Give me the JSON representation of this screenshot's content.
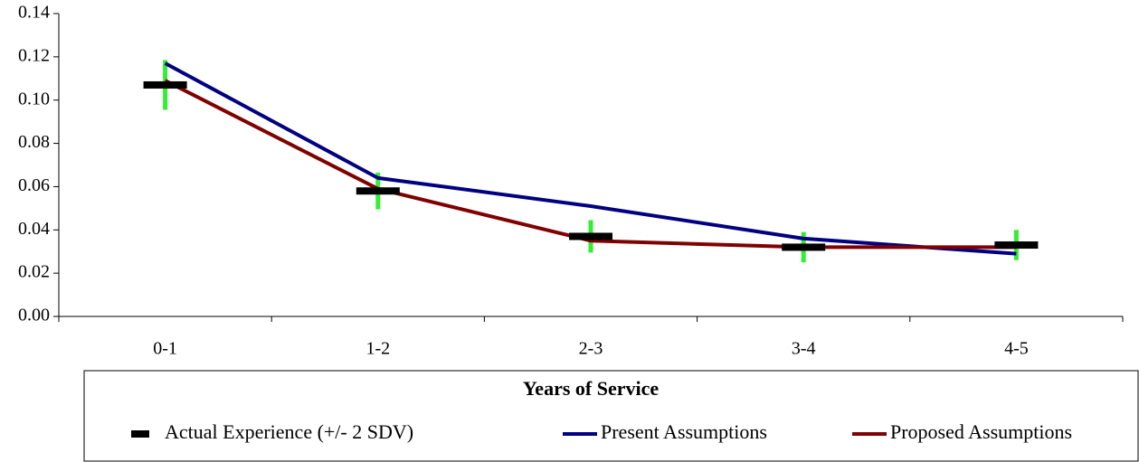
{
  "chart_data": {
    "type": "line",
    "x_label": "Years of Service",
    "categories": [
      "0-1",
      "1-2",
      "2-3",
      "3-4",
      "4-5"
    ],
    "series": [
      {
        "name": "Actual Experience (+/- 2 SDV)",
        "color": "#000000",
        "error_color": "#33ee33",
        "style": "dash-with-error",
        "values": [
          0.107,
          0.058,
          0.037,
          0.032,
          0.033
        ],
        "errors": [
          0.0115,
          0.0085,
          0.0075,
          0.007,
          0.007
        ]
      },
      {
        "name": "Present Assumptions",
        "color": "#000080",
        "style": "line",
        "values": [
          0.117,
          0.064,
          0.051,
          0.036,
          0.029
        ]
      },
      {
        "name": "Proposed Assumptions",
        "color": "#800000",
        "style": "line",
        "values": [
          0.109,
          0.059,
          0.035,
          0.032,
          0.032
        ]
      }
    ],
    "ylim": [
      0,
      0.14
    ],
    "yticks": [
      {
        "value": 0,
        "label": "0.00"
      },
      {
        "value": 0.02,
        "label": "0.02"
      },
      {
        "value": 0.04,
        "label": "0.04"
      },
      {
        "value": 0.06,
        "label": "0.06"
      },
      {
        "value": 0.08,
        "label": "0.08"
      },
      {
        "value": 0.1,
        "label": "0.10"
      },
      {
        "value": 0.12,
        "label": "0.12"
      },
      {
        "value": 0.14,
        "label": "0.14"
      }
    ],
    "grid": false,
    "legend": "bottom"
  }
}
